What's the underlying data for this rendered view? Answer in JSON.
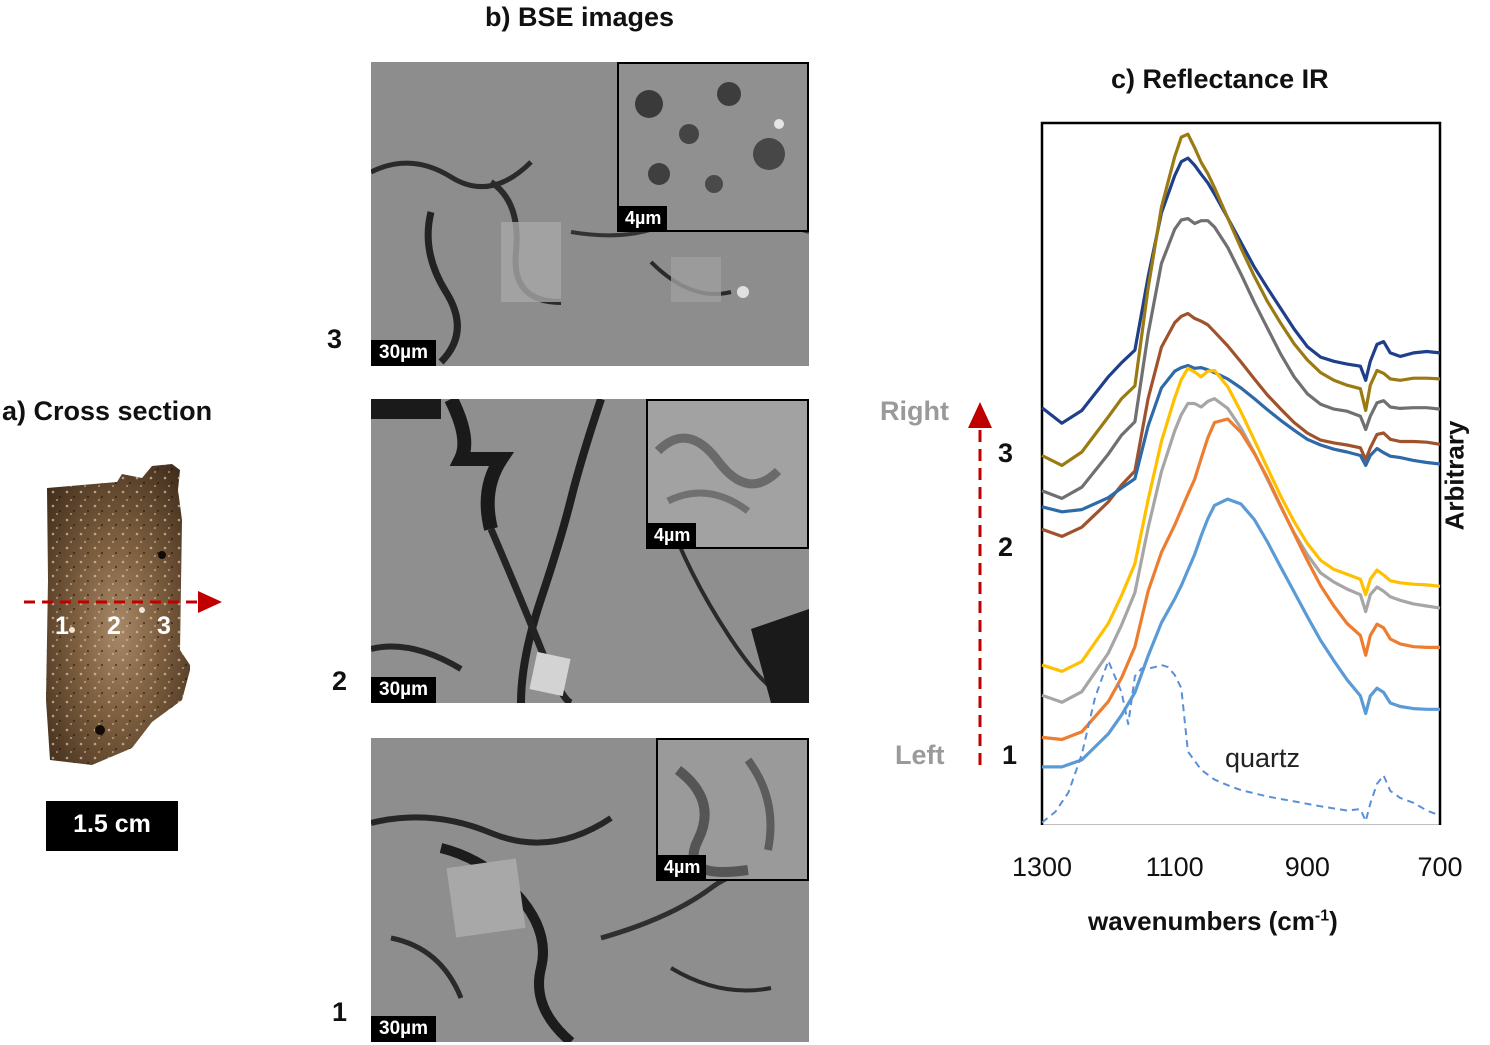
{
  "panel_a": {
    "title": "a) Cross section",
    "points": [
      "1",
      "2",
      "3"
    ],
    "scale_bar": "1.5 cm"
  },
  "panel_b": {
    "title": "b) BSE images",
    "images": [
      {
        "number": "3",
        "scale": "30µm",
        "inset_scale": "4µm"
      },
      {
        "number": "2",
        "scale": "30µm",
        "inset_scale": "4µm"
      },
      {
        "number": "1",
        "scale": "30µm",
        "inset_scale": "4µm"
      }
    ]
  },
  "panel_c": {
    "title": "c) Reflectance IR",
    "direction_top": "Right",
    "direction_bottom": "Left",
    "side_numbers": [
      "3",
      "2",
      "1"
    ],
    "quartz_label": "quartz",
    "y_axis_label": "Arbitrary",
    "colors": {
      "arrow": "#c00000",
      "quartz": "#5b8fd6"
    }
  },
  "chart_data": {
    "type": "line",
    "title": "c) Reflectance IR",
    "xlabel": "wavenumbers (cm",
    "xlabel_superscript": "-1",
    "xlabel_suffix": ")",
    "ylabel": "Arbitrary",
    "x_ticks": [
      1300,
      1100,
      900,
      700
    ],
    "xlim": [
      1300,
      700
    ],
    "x_reversed": true,
    "ylim": [
      0,
      100
    ],
    "grid": false,
    "series": [
      {
        "color": "#1f3f8a",
        "x": [
          1300,
          1270,
          1240,
          1200,
          1180,
          1160,
          1140,
          1120,
          1100,
          1090,
          1080,
          1070,
          1060,
          1050,
          1040,
          1020,
          1000,
          980,
          960,
          940,
          920,
          900,
          880,
          860,
          840,
          820,
          812,
          805,
          795,
          785,
          775,
          760,
          740,
          720,
          700
        ],
        "y": [
          59.5,
          57.3,
          59.1,
          63.9,
          65.9,
          67.7,
          78.1,
          87.2,
          92.5,
          94.5,
          95.0,
          94.0,
          92.7,
          91.5,
          89.9,
          86.5,
          83.0,
          79.5,
          76.5,
          73.6,
          70.7,
          68.2,
          66.7,
          66.1,
          65.7,
          65.4,
          63.4,
          66.1,
          68.5,
          68.9,
          67.3,
          66.8,
          67.3,
          67.5,
          67.3
        ]
      },
      {
        "color": "#9a7a12",
        "x": [
          1300,
          1270,
          1240,
          1200,
          1180,
          1160,
          1140,
          1120,
          1100,
          1090,
          1080,
          1070,
          1060,
          1050,
          1040,
          1020,
          1000,
          980,
          960,
          940,
          920,
          900,
          880,
          860,
          840,
          820,
          812,
          805,
          795,
          785,
          775,
          760,
          740,
          720,
          700
        ],
        "y": [
          52.7,
          51.3,
          53.2,
          58.2,
          60.8,
          62.6,
          76.5,
          88.0,
          95.2,
          98.0,
          98.4,
          96.5,
          94.4,
          92.8,
          90.8,
          86.5,
          82.2,
          78.2,
          74.6,
          71.5,
          68.6,
          66.3,
          64.5,
          63.4,
          62.7,
          62.2,
          59.1,
          62.7,
          64.8,
          64.4,
          63.6,
          63.4,
          63.7,
          63.7,
          63.6
        ]
      },
      {
        "color": "#707070",
        "x": [
          1300,
          1270,
          1240,
          1200,
          1180,
          1160,
          1140,
          1120,
          1100,
          1090,
          1080,
          1070,
          1060,
          1050,
          1040,
          1020,
          1000,
          980,
          960,
          940,
          920,
          900,
          880,
          860,
          840,
          820,
          812,
          805,
          795,
          785,
          775,
          760,
          740,
          720,
          700
        ],
        "y": [
          47.7,
          46.6,
          48.2,
          52.9,
          55.6,
          57.5,
          70.0,
          80.0,
          84.9,
          86.2,
          86.4,
          85.7,
          86.1,
          86.1,
          85.2,
          82.3,
          78.5,
          74.5,
          70.8,
          67.1,
          63.9,
          61.5,
          60.0,
          59.3,
          59.0,
          58.3,
          56.4,
          58.3,
          60.2,
          60.5,
          59.6,
          59.4,
          59.5,
          59.5,
          59.3
        ]
      },
      {
        "color": "#a0522d",
        "x": [
          1300,
          1270,
          1240,
          1200,
          1180,
          1160,
          1140,
          1120,
          1100,
          1090,
          1080,
          1070,
          1060,
          1050,
          1040,
          1020,
          1000,
          980,
          960,
          940,
          920,
          900,
          880,
          860,
          840,
          820,
          812,
          805,
          795,
          785,
          775,
          760,
          740,
          720,
          700
        ],
        "y": [
          42.2,
          41.2,
          42.5,
          46.1,
          48.5,
          50.5,
          60.8,
          68.1,
          71.6,
          72.5,
          72.9,
          72.2,
          71.8,
          71.3,
          70.3,
          68.3,
          66.0,
          63.6,
          61.3,
          59.3,
          57.4,
          55.9,
          54.9,
          54.5,
          54.2,
          53.8,
          52.1,
          53.8,
          55.7,
          55.9,
          55.0,
          54.7,
          54.7,
          54.6,
          54.3
        ]
      },
      {
        "color": "#2e6aa8",
        "x": [
          1300,
          1270,
          1240,
          1200,
          1180,
          1160,
          1140,
          1120,
          1100,
          1090,
          1080,
          1070,
          1060,
          1050,
          1040,
          1020,
          1000,
          980,
          960,
          940,
          920,
          900,
          880,
          860,
          840,
          820,
          812,
          805,
          795,
          785,
          775,
          760,
          740,
          720,
          700
        ],
        "y": [
          45.4,
          44.7,
          45.0,
          46.7,
          48.1,
          49.4,
          56.9,
          62.3,
          64.7,
          65.2,
          65.5,
          65.1,
          65.2,
          64.9,
          64.5,
          63.6,
          62.3,
          60.8,
          59.2,
          57.7,
          56.3,
          55.0,
          54.2,
          53.6,
          53.2,
          52.7,
          51.3,
          52.7,
          53.7,
          53.1,
          52.6,
          52.4,
          52.0,
          51.7,
          51.5
        ]
      },
      {
        "color": "#ffc000",
        "x": [
          1300,
          1270,
          1240,
          1200,
          1180,
          1160,
          1140,
          1120,
          1100,
          1090,
          1080,
          1070,
          1060,
          1050,
          1040,
          1020,
          1000,
          980,
          960,
          940,
          920,
          900,
          880,
          860,
          840,
          820,
          812,
          805,
          795,
          785,
          775,
          760,
          740,
          720,
          700
        ],
        "y": [
          22.9,
          22.0,
          23.4,
          28.8,
          32.8,
          37.3,
          46.4,
          54.7,
          60.9,
          63.5,
          65.1,
          64.6,
          63.9,
          64.7,
          64.8,
          62.5,
          58.9,
          54.9,
          50.9,
          46.9,
          43.3,
          40.2,
          37.8,
          36.5,
          35.8,
          35.1,
          32.9,
          35.1,
          36.4,
          35.7,
          34.9,
          34.6,
          34.4,
          34.3,
          34.1
        ]
      },
      {
        "color": "#a6a6a6",
        "x": [
          1300,
          1270,
          1240,
          1200,
          1180,
          1160,
          1140,
          1120,
          1100,
          1090,
          1080,
          1070,
          1060,
          1050,
          1040,
          1020,
          1000,
          980,
          960,
          940,
          920,
          900,
          880,
          860,
          840,
          820,
          812,
          805,
          795,
          785,
          775,
          760,
          740,
          720,
          700
        ],
        "y": [
          18.6,
          17.6,
          19.1,
          24.6,
          28.6,
          33.2,
          42.4,
          50.4,
          56.2,
          58.5,
          60.1,
          60.1,
          59.6,
          60.4,
          60.8,
          59.4,
          56.6,
          53.1,
          49.3,
          45.4,
          41.7,
          38.6,
          36.0,
          34.7,
          33.7,
          32.9,
          30.5,
          32.9,
          34.0,
          33.4,
          32.6,
          32.1,
          31.6,
          31.3,
          31.0
        ]
      },
      {
        "color": "#ed7d31",
        "x": [
          1300,
          1270,
          1240,
          1200,
          1180,
          1160,
          1140,
          1120,
          1100,
          1090,
          1080,
          1070,
          1060,
          1050,
          1040,
          1020,
          1000,
          980,
          960,
          940,
          920,
          900,
          880,
          860,
          840,
          820,
          812,
          805,
          795,
          785,
          775,
          760,
          740,
          720,
          700
        ],
        "y": [
          12.6,
          12.3,
          13.4,
          17.7,
          21.1,
          25.5,
          33.4,
          38.9,
          42.8,
          45.0,
          47.2,
          49.3,
          52.3,
          55.2,
          57.4,
          57.9,
          56.0,
          53.0,
          49.5,
          45.5,
          41.6,
          37.8,
          34.2,
          31.3,
          28.8,
          27.1,
          24.3,
          27.1,
          28.7,
          28.2,
          26.6,
          25.9,
          25.5,
          25.4,
          25.4
        ]
      },
      {
        "color": "#5b9bd5",
        "x": [
          1300,
          1270,
          1240,
          1200,
          1180,
          1160,
          1140,
          1120,
          1100,
          1090,
          1080,
          1070,
          1060,
          1050,
          1040,
          1020,
          1000,
          980,
          960,
          940,
          920,
          900,
          880,
          860,
          840,
          820,
          812,
          805,
          795,
          785,
          775,
          760,
          740,
          720,
          700
        ],
        "y": [
          8.4,
          8.4,
          9.4,
          13.1,
          15.8,
          19.0,
          24.2,
          28.9,
          32.3,
          34.2,
          36.4,
          38.6,
          41.3,
          43.7,
          45.6,
          46.5,
          45.8,
          43.6,
          40.4,
          36.8,
          33.3,
          29.8,
          26.4,
          23.5,
          20.8,
          18.5,
          16.0,
          18.5,
          19.6,
          19.0,
          17.5,
          17.0,
          16.7,
          16.6,
          16.6
        ]
      },
      {
        "name": "quartz",
        "dashed": true,
        "color": "#5b8fd6",
        "x": [
          1300,
          1280,
          1260,
          1240,
          1220,
          1200,
          1180,
          1170,
          1160,
          1150,
          1140,
          1130,
          1120,
          1110,
          1100,
          1090,
          1080,
          1060,
          1040,
          1020,
          1000,
          960,
          920,
          880,
          840,
          820,
          812,
          805,
          795,
          785,
          775,
          760,
          740,
          720,
          700
        ],
        "y": [
          0.5,
          2.0,
          4.8,
          10.2,
          18.3,
          23.5,
          19.0,
          14.5,
          21.3,
          22.4,
          22.4,
          22.6,
          22.9,
          22.6,
          21.5,
          19.6,
          10.6,
          8.0,
          6.6,
          5.8,
          5.1,
          4.2,
          3.5,
          2.8,
          2.2,
          2.4,
          0.7,
          3.2,
          6.0,
          7.2,
          5.0,
          4.0,
          3.3,
          2.2,
          1.5
        ]
      }
    ]
  }
}
